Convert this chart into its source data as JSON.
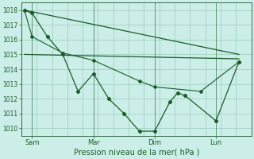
{
  "background_color": "#cceee8",
  "grid_color": "#99ccbb",
  "line_color": "#1a5c2a",
  "title": "Pression niveau de la mer( hPa )",
  "ylim": [
    1009.5,
    1018.5
  ],
  "yticks": [
    1010,
    1011,
    1012,
    1013,
    1014,
    1015,
    1016,
    1017,
    1018
  ],
  "x_tick_labels": [
    "Sam",
    "Mar",
    "Dim",
    "Lun"
  ],
  "x_tick_positions": [
    0.5,
    4.5,
    8.5,
    12.5
  ],
  "xlim": [
    -0.2,
    14.8
  ],
  "series1_x": [
    0,
    0.5,
    1.5,
    2.5,
    3.5,
    4.5,
    5.5,
    6.5,
    7.5,
    8.5,
    9.5,
    10.0,
    10.5,
    12.5,
    14.0
  ],
  "series1_y": [
    1018.0,
    1017.8,
    1016.2,
    1015.0,
    1012.5,
    1013.7,
    1012.0,
    1011.0,
    1009.8,
    1009.8,
    1011.8,
    1012.4,
    1012.2,
    1010.5,
    1014.5
  ],
  "series2_x": [
    0,
    14.0
  ],
  "series2_y": [
    1018.0,
    1015.0
  ],
  "series3_x": [
    0,
    14.0
  ],
  "series3_y": [
    1015.0,
    1014.7
  ],
  "series4_x": [
    0,
    0.5,
    2.5,
    4.5,
    7.5,
    8.5,
    11.5,
    14.0
  ],
  "series4_y": [
    1018.0,
    1016.2,
    1015.1,
    1014.6,
    1013.2,
    1012.8,
    1012.5,
    1014.5
  ],
  "ytick_fontsize": 5.5,
  "xtick_fontsize": 6.0,
  "xlabel_fontsize": 7.0
}
